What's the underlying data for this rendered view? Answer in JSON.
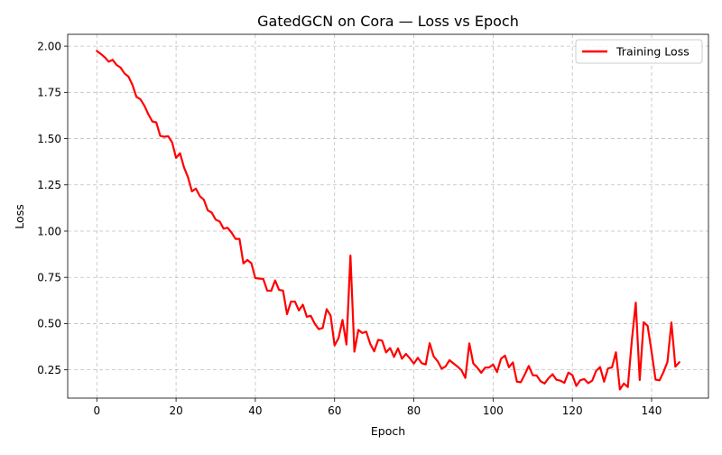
{
  "chart_data": {
    "type": "line",
    "title": "GatedGCN on Cora — Loss vs Epoch",
    "xlabel": "Epoch",
    "ylabel": "Loss",
    "xlim": [
      -7.35,
      154.35
    ],
    "ylim": [
      0.097,
      2.064
    ],
    "xticks": [
      0,
      20,
      40,
      60,
      80,
      100,
      120,
      140
    ],
    "yticks": [
      0.25,
      0.5,
      0.75,
      1.0,
      1.25,
      1.5,
      1.75,
      2.0
    ],
    "xtick_labels": [
      "0",
      "20",
      "40",
      "60",
      "80",
      "100",
      "120",
      "140"
    ],
    "ytick_labels": [
      "0.25",
      "0.50",
      "0.75",
      "1.00",
      "1.25",
      "1.50",
      "1.75",
      "2.00"
    ],
    "grid": true,
    "legend_position": "top-right",
    "series": [
      {
        "name": "Training Loss",
        "color": "#ff0000",
        "x": [
          0,
          1,
          2,
          3,
          4,
          5,
          6,
          7,
          8,
          9,
          10,
          11,
          12,
          13,
          14,
          15,
          16,
          17,
          18,
          19,
          20,
          21,
          22,
          23,
          24,
          25,
          26,
          27,
          28,
          29,
          30,
          31,
          32,
          33,
          34,
          35,
          36,
          37,
          38,
          39,
          40,
          41,
          42,
          43,
          44,
          45,
          46,
          47,
          48,
          49,
          50,
          51,
          52,
          53,
          54,
          55,
          56,
          57,
          58,
          59,
          60,
          61,
          62,
          63,
          64,
          65,
          66,
          67,
          68,
          69,
          70,
          71,
          72,
          73,
          74,
          75,
          76,
          77,
          78,
          79,
          80,
          81,
          82,
          83,
          84,
          85,
          86,
          87,
          88,
          89,
          90,
          91,
          92,
          93,
          94,
          95,
          96,
          97,
          98,
          99,
          100,
          101,
          102,
          103,
          104,
          105,
          106,
          107,
          108,
          109,
          110,
          111,
          112,
          113,
          114,
          115,
          116,
          117,
          118,
          119,
          120,
          121,
          122,
          123,
          124,
          125,
          126,
          127,
          128,
          129,
          130,
          131,
          132,
          133,
          134,
          135,
          136,
          137,
          138,
          139,
          140,
          141,
          142,
          143,
          144,
          145,
          146,
          147
        ],
        "values": [
          1.974,
          1.958,
          1.94,
          1.916,
          1.926,
          1.898,
          1.884,
          1.852,
          1.835,
          1.79,
          1.726,
          1.713,
          1.678,
          1.632,
          1.593,
          1.588,
          1.515,
          1.51,
          1.513,
          1.48,
          1.396,
          1.421,
          1.345,
          1.292,
          1.215,
          1.23,
          1.189,
          1.17,
          1.112,
          1.1,
          1.062,
          1.052,
          1.013,
          1.018,
          0.992,
          0.958,
          0.958,
          0.825,
          0.844,
          0.826,
          0.746,
          0.743,
          0.742,
          0.678,
          0.677,
          0.733,
          0.682,
          0.678,
          0.551,
          0.619,
          0.619,
          0.571,
          0.602,
          0.537,
          0.542,
          0.499,
          0.47,
          0.476,
          0.578,
          0.543,
          0.382,
          0.421,
          0.52,
          0.387,
          0.868,
          0.348,
          0.466,
          0.449,
          0.456,
          0.39,
          0.35,
          0.412,
          0.408,
          0.344,
          0.368,
          0.32,
          0.366,
          0.31,
          0.336,
          0.312,
          0.284,
          0.315,
          0.286,
          0.279,
          0.394,
          0.323,
          0.297,
          0.256,
          0.268,
          0.302,
          0.285,
          0.268,
          0.248,
          0.206,
          0.393,
          0.285,
          0.262,
          0.234,
          0.262,
          0.263,
          0.279,
          0.238,
          0.31,
          0.327,
          0.264,
          0.29,
          0.186,
          0.183,
          0.225,
          0.271,
          0.221,
          0.219,
          0.188,
          0.176,
          0.205,
          0.226,
          0.196,
          0.191,
          0.18,
          0.235,
          0.222,
          0.163,
          0.194,
          0.2,
          0.178,
          0.191,
          0.244,
          0.265,
          0.186,
          0.258,
          0.263,
          0.345,
          0.144,
          0.176,
          0.157,
          0.406,
          0.613,
          0.195,
          0.507,
          0.488,
          0.347,
          0.197,
          0.193,
          0.238,
          0.293,
          0.506,
          0.267,
          0.291
        ]
      }
    ]
  }
}
